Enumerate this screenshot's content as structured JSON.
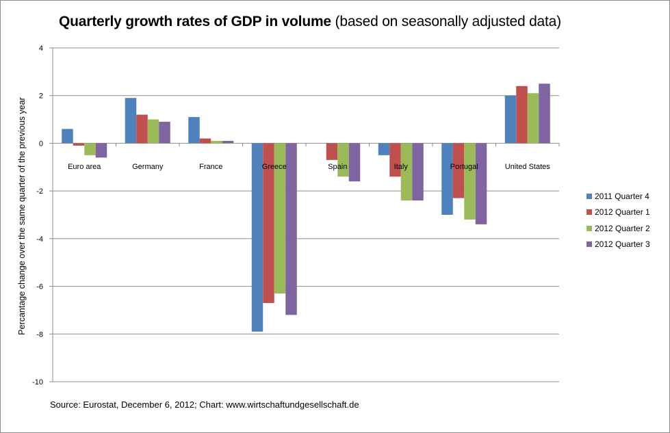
{
  "chart_data": {
    "type": "bar",
    "title_bold": "Quarterly growth rates of GDP in volume",
    "title_light": "(based on seasonally adjusted data)",
    "xlabel": "",
    "ylabel": "Percantage change over the same quarter of the previous year",
    "ylim": [
      -10,
      4
    ],
    "yticks": [
      4,
      2,
      0,
      -2,
      -4,
      -6,
      -8,
      -10
    ],
    "grid": true,
    "legend_position": "right",
    "categories": [
      "Euro area",
      "Germany",
      "France",
      "Greece",
      "Spain",
      "Italy",
      "Portugal",
      "United States"
    ],
    "series": [
      {
        "name": "2011 Quarter 4",
        "color": "#4f81bd",
        "values": [
          0.6,
          1.9,
          1.1,
          -7.9,
          0.0,
          -0.5,
          -3.0,
          2.0
        ]
      },
      {
        "name": "2012 Quarter 1",
        "color": "#c0504d",
        "values": [
          -0.1,
          1.2,
          0.2,
          -6.7,
          -0.7,
          -1.4,
          -2.3,
          2.4
        ]
      },
      {
        "name": "2012 Quarter 2",
        "color": "#9bbb59",
        "values": [
          -0.5,
          1.0,
          0.1,
          -6.3,
          -1.4,
          -2.4,
          -3.2,
          2.1
        ]
      },
      {
        "name": "2012 Quarter 3",
        "color": "#8064a2",
        "values": [
          -0.6,
          0.9,
          0.1,
          -7.2,
          -1.6,
          -2.4,
          -3.4,
          2.5
        ]
      }
    ],
    "source": "Source: Eurostat, December 6, 2012;  Chart: www.wirtschaftundgesellschaft.de"
  }
}
